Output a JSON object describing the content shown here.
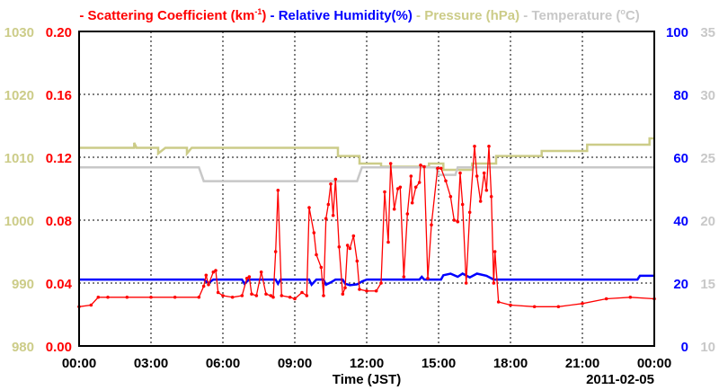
{
  "chart_data": {
    "type": "line",
    "legend": [
      {
        "label": "- Scattering Coefficient (km",
        "sup": "-1",
        "close": ")",
        "color": "#ff0000"
      },
      {
        "label": "- Relative Humidity(%)",
        "color": "#0000ff"
      },
      {
        "label": "- Pressure (hPa)",
        "color": "#cccc88"
      },
      {
        "label": "- Temperature (",
        "sup": "o",
        "close": "C)",
        "color": "#c8c8c8"
      }
    ],
    "xlabel": "Time (JST)",
    "date_label": "2011-02-05",
    "xlim": [
      0,
      24
    ],
    "x_ticks": [
      "00:00",
      "03:00",
      "06:00",
      "09:00",
      "12:00",
      "15:00",
      "18:00",
      "21:00",
      "00:00"
    ],
    "axes": {
      "pressure": {
        "ylim": [
          980,
          1030
        ],
        "ticks": [
          "980",
          "990",
          "1000",
          "1010",
          "1020",
          "1030"
        ],
        "color": "#cccc88"
      },
      "scattering": {
        "ylim": [
          0,
          0.2
        ],
        "ticks": [
          "0.00",
          "0.04",
          "0.08",
          "0.12",
          "0.16",
          "0.20"
        ],
        "color": "#ff0000"
      },
      "humidity": {
        "ylim": [
          0,
          100
        ],
        "ticks": [
          "0",
          "20",
          "40",
          "60",
          "80",
          "100"
        ],
        "color": "#0000ff"
      },
      "temperature": {
        "ylim": [
          10,
          35
        ],
        "ticks": [
          "10",
          "15",
          "20",
          "25",
          "30",
          "35"
        ],
        "color": "#c8c8c8"
      }
    },
    "series": [
      {
        "name": "Pressure",
        "axis": "pressure",
        "color": "#cccc88",
        "points": [
          [
            0,
            1011.5
          ],
          [
            2.3,
            1011.5
          ],
          [
            2.3,
            1012.3
          ],
          [
            2.4,
            1011.5
          ],
          [
            3.3,
            1011.5
          ],
          [
            3.3,
            1010.6
          ],
          [
            3.6,
            1011.5
          ],
          [
            4.5,
            1011.5
          ],
          [
            4.5,
            1010.6
          ],
          [
            4.7,
            1011.5
          ],
          [
            10.8,
            1011.5
          ],
          [
            10.8,
            1010.2
          ],
          [
            11.7,
            1010.2
          ],
          [
            11.7,
            1009
          ],
          [
            12.6,
            1009
          ],
          [
            12.6,
            1008.5
          ],
          [
            14.6,
            1008.5
          ],
          [
            14.6,
            1009
          ],
          [
            15.2,
            1009
          ],
          [
            15.2,
            1008
          ],
          [
            16.4,
            1008
          ],
          [
            16.4,
            1009
          ],
          [
            17.4,
            1009
          ],
          [
            17.4,
            1010.2
          ],
          [
            19.3,
            1010.2
          ],
          [
            19.3,
            1011
          ],
          [
            21.2,
            1011
          ],
          [
            21.2,
            1012
          ],
          [
            23.8,
            1012
          ],
          [
            23.8,
            1013
          ],
          [
            24,
            1013
          ]
        ]
      },
      {
        "name": "Temperature",
        "axis": "temperature",
        "color": "#c8c8c8",
        "points": [
          [
            0,
            24.2
          ],
          [
            5.0,
            24.2
          ],
          [
            5.2,
            23.1
          ],
          [
            11.6,
            23.1
          ],
          [
            11.8,
            24.2
          ],
          [
            14.9,
            24.2
          ],
          [
            15.0,
            23.6
          ],
          [
            15.7,
            23.6
          ],
          [
            15.8,
            24.2
          ],
          [
            24,
            24.2
          ]
        ]
      },
      {
        "name": "Relative Humidity",
        "axis": "humidity",
        "color": "#0000ff",
        "points": [
          [
            0,
            21.1
          ],
          [
            5.2,
            21.1
          ],
          [
            5.4,
            20
          ],
          [
            5.6,
            21.1
          ],
          [
            6.8,
            21.1
          ],
          [
            6.9,
            19.8
          ],
          [
            7.1,
            21.1
          ],
          [
            8.2,
            21.1
          ],
          [
            8.3,
            19.8
          ],
          [
            8.4,
            21.1
          ],
          [
            9.6,
            21.1
          ],
          [
            9.7,
            19.5
          ],
          [
            9.9,
            21.1
          ],
          [
            10.2,
            21.1
          ],
          [
            10.3,
            19.5
          ],
          [
            10.5,
            20.2
          ],
          [
            10.7,
            21.1
          ],
          [
            11.0,
            21.1
          ],
          [
            11.1,
            19.8
          ],
          [
            11.3,
            19.3
          ],
          [
            11.6,
            19.6
          ],
          [
            11.8,
            20.5
          ],
          [
            12.0,
            21.1
          ],
          [
            14.2,
            21.1
          ],
          [
            14.3,
            22
          ],
          [
            14.4,
            21.1
          ],
          [
            15.1,
            21.1
          ],
          [
            15.2,
            22.5
          ],
          [
            15.5,
            23
          ],
          [
            15.8,
            22
          ],
          [
            16.0,
            23
          ],
          [
            16.3,
            21.8
          ],
          [
            16.6,
            23
          ],
          [
            17.0,
            22.3
          ],
          [
            17.3,
            21.1
          ],
          [
            23.3,
            21.1
          ],
          [
            23.4,
            22.3
          ],
          [
            24,
            22.3
          ]
        ]
      },
      {
        "name": "Scattering Coefficient",
        "axis": "scattering",
        "color": "#ff0000",
        "points": [
          [
            0,
            0.025
          ],
          [
            0.5,
            0.026
          ],
          [
            0.8,
            0.031
          ],
          [
            1.2,
            0.031
          ],
          [
            2,
            0.031
          ],
          [
            3,
            0.031
          ],
          [
            4,
            0.031
          ],
          [
            5.0,
            0.031
          ],
          [
            5.2,
            0.038
          ],
          [
            5.3,
            0.045
          ],
          [
            5.4,
            0.039
          ],
          [
            5.6,
            0.047
          ],
          [
            5.7,
            0.048
          ],
          [
            5.8,
            0.034
          ],
          [
            6.0,
            0.032
          ],
          [
            6.4,
            0.031
          ],
          [
            6.8,
            0.032
          ],
          [
            7.0,
            0.043
          ],
          [
            7.1,
            0.044
          ],
          [
            7.2,
            0.033
          ],
          [
            7.4,
            0.032
          ],
          [
            7.6,
            0.047
          ],
          [
            7.8,
            0.033
          ],
          [
            8.0,
            0.032
          ],
          [
            8.1,
            0.031
          ],
          [
            8.2,
            0.06
          ],
          [
            8.3,
            0.099
          ],
          [
            8.45,
            0.032
          ],
          [
            8.8,
            0.031
          ],
          [
            9.0,
            0.03
          ],
          [
            9.3,
            0.034
          ],
          [
            9.5,
            0.032
          ],
          [
            9.6,
            0.088
          ],
          [
            9.8,
            0.072
          ],
          [
            9.9,
            0.058
          ],
          [
            10.1,
            0.05
          ],
          [
            10.2,
            0.032
          ],
          [
            10.3,
            0.081
          ],
          [
            10.4,
            0.09
          ],
          [
            10.5,
            0.103
          ],
          [
            10.6,
            0.083
          ],
          [
            10.7,
            0.106
          ],
          [
            10.85,
            0.063
          ],
          [
            11.0,
            0.033
          ],
          [
            11.1,
            0.037
          ],
          [
            11.2,
            0.064
          ],
          [
            11.3,
            0.062
          ],
          [
            11.45,
            0.07
          ],
          [
            11.6,
            0.054
          ],
          [
            11.7,
            0.036
          ],
          [
            12.0,
            0.035
          ],
          [
            12.4,
            0.035
          ],
          [
            12.6,
            0.04
          ],
          [
            12.75,
            0.098
          ],
          [
            12.9,
            0.066
          ],
          [
            13.0,
            0.116
          ],
          [
            13.15,
            0.087
          ],
          [
            13.3,
            0.1
          ],
          [
            13.4,
            0.101
          ],
          [
            13.55,
            0.044
          ],
          [
            13.7,
            0.084
          ],
          [
            13.85,
            0.108
          ],
          [
            13.9,
            0.091
          ],
          [
            14.05,
            0.101
          ],
          [
            14.2,
            0.104
          ],
          [
            14.25,
            0.115
          ],
          [
            14.4,
            0.114
          ],
          [
            14.55,
            0.043
          ],
          [
            14.7,
            0.077
          ],
          [
            14.96,
            0.113
          ],
          [
            15.1,
            0.113
          ],
          [
            15.3,
            0.105
          ],
          [
            15.5,
            0.095
          ],
          [
            15.65,
            0.08
          ],
          [
            15.8,
            0.079
          ],
          [
            15.9,
            0.11
          ],
          [
            16.0,
            0.09
          ],
          [
            16.15,
            0.04
          ],
          [
            16.3,
            0.085
          ],
          [
            16.5,
            0.127
          ],
          [
            16.6,
            0.108
          ],
          [
            16.75,
            0.092
          ],
          [
            16.9,
            0.11
          ],
          [
            17.0,
            0.099
          ],
          [
            17.1,
            0.127
          ],
          [
            17.2,
            0.095
          ],
          [
            17.3,
            0.04
          ],
          [
            17.35,
            0.06
          ],
          [
            17.5,
            0.028
          ],
          [
            18.0,
            0.026
          ],
          [
            19,
            0.025
          ],
          [
            20,
            0.025
          ],
          [
            21,
            0.027
          ],
          [
            22,
            0.03
          ],
          [
            23,
            0.031
          ],
          [
            24,
            0.03
          ]
        ]
      }
    ]
  }
}
